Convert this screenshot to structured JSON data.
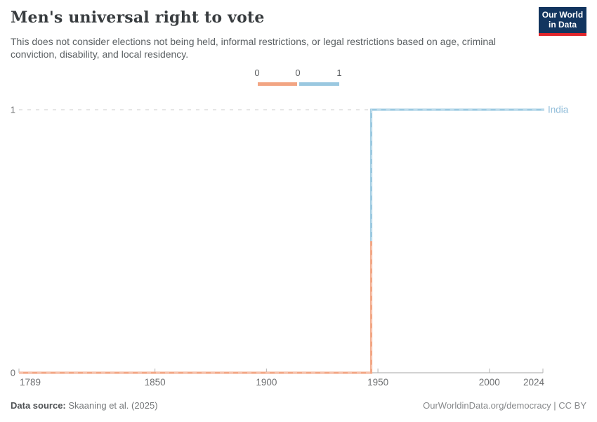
{
  "header": {
    "title": "Men's universal right to vote",
    "subtitle": "This does not consider elections not being held, informal restrictions, or legal restrictions based on age, criminal conviction, disability, and local residency.",
    "logo": {
      "line1": "Our World",
      "line2": "in Data"
    }
  },
  "legend": {
    "labels": [
      "0",
      "0",
      "1"
    ],
    "segments": [
      {
        "value": "0",
        "color": "#f2a583"
      },
      {
        "value": "1",
        "color": "#9ac8e0"
      }
    ]
  },
  "chart_data": {
    "type": "line",
    "step": true,
    "title": "Men's universal right to vote",
    "xlabel": "",
    "ylabel": "",
    "xlim": [
      1789,
      2024
    ],
    "ylim": [
      0,
      1
    ],
    "x_ticks": [
      1789,
      1850,
      1900,
      1950,
      2000,
      2024
    ],
    "y_ticks": [
      0,
      1
    ],
    "grid": "dashed-horizontal",
    "legend_position": "top-center",
    "series": [
      {
        "name": "India",
        "points": [
          [
            1789,
            0
          ],
          [
            1947,
            0
          ],
          [
            1947,
            1
          ],
          [
            2024,
            1
          ]
        ],
        "value_colors": {
          "0": "#f2a583",
          "1": "#9ac8e0"
        },
        "label_color": "#8fbcd9"
      }
    ]
  },
  "colors": {
    "accent_orange": "#f2a583",
    "accent_blue": "#9ac8e0",
    "logo_navy": "#12355f",
    "logo_red": "#e0262c",
    "gridline": "#cdcdcd",
    "axis_line": "#a6a6a6",
    "tick_text": "#6e7072"
  },
  "footer": {
    "source_label": "Data source:",
    "source_value": "Skaaning et al. (2025)",
    "credit": "OurWorldinData.org/democracy | CC BY"
  }
}
